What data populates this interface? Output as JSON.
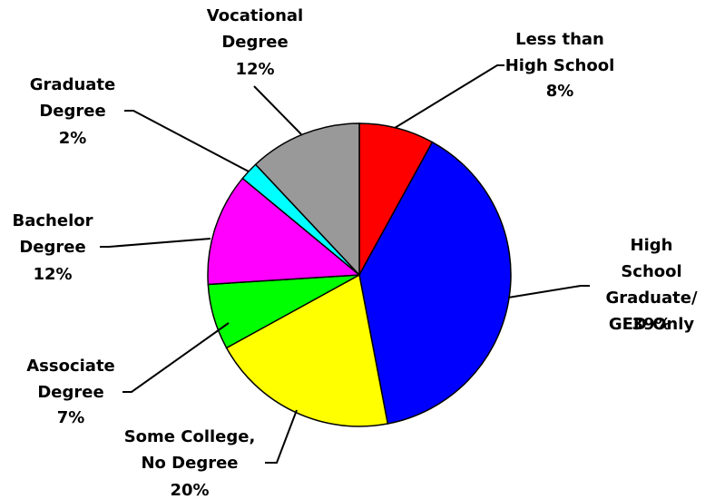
{
  "chart_data": {
    "type": "pie",
    "categories": [
      "Less than\nHigh School",
      "High School\nGraduate/\nGED Only",
      "Some College,\nNo Degree",
      "Associate\nDegree",
      "Bachelor\nDegree",
      "Graduate\nDegree",
      "Vocational\nDegree"
    ],
    "values": [
      8,
      39,
      20,
      7,
      12,
      2,
      12
    ],
    "value_labels": [
      "8%",
      "39%",
      "20%",
      "7%",
      "12%",
      "2%",
      "12%"
    ],
    "colors": [
      "#ff0000",
      "#0000ff",
      "#ffff00",
      "#00ff00",
      "#ff00ff",
      "#00ffff",
      "#999999"
    ]
  }
}
